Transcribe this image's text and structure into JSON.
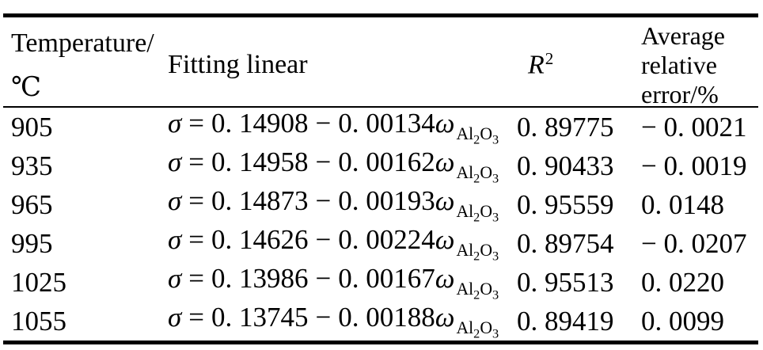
{
  "table": {
    "headers": {
      "temperature": {
        "line1": "Temperature/",
        "line2": "℃"
      },
      "fitting": "Fitting linear",
      "r2": {
        "base": "R",
        "sup": "2"
      },
      "error": {
        "line1": "Average",
        "line2": "relative",
        "line3": "error/%"
      }
    },
    "eq_tokens": {
      "sigma": "σ",
      "equals": "=",
      "minus": "−",
      "omega": "ω",
      "sub_al": "Al",
      "sub_2": "2",
      "sub_o": "O",
      "sub_3": "3"
    },
    "rows": [
      {
        "temperature": "905",
        "intercept": "0. 14908",
        "slope": "0. 00134",
        "r2": "0. 89775",
        "error": "− 0. 0021"
      },
      {
        "temperature": "935",
        "intercept": "0. 14958",
        "slope": "0. 00162",
        "r2": "0. 90433",
        "error": "− 0. 0019"
      },
      {
        "temperature": "965",
        "intercept": "0. 14873",
        "slope": "0. 00193",
        "r2": "0. 95559",
        "error": "0. 0148"
      },
      {
        "temperature": "995",
        "intercept": "0. 14626",
        "slope": "0. 00224",
        "r2": "0. 89754",
        "error": "− 0. 0207"
      },
      {
        "temperature": "1025",
        "intercept": "0. 13986",
        "slope": "0. 00167",
        "r2": "0. 95513",
        "error": "0. 0220"
      },
      {
        "temperature": "1055",
        "intercept": "0. 13745",
        "slope": "0. 00188",
        "r2": "0. 89419",
        "error": "0. 0099"
      }
    ]
  },
  "colors": {
    "text": "#000000",
    "rule": "#000000",
    "background": "#ffffff"
  }
}
